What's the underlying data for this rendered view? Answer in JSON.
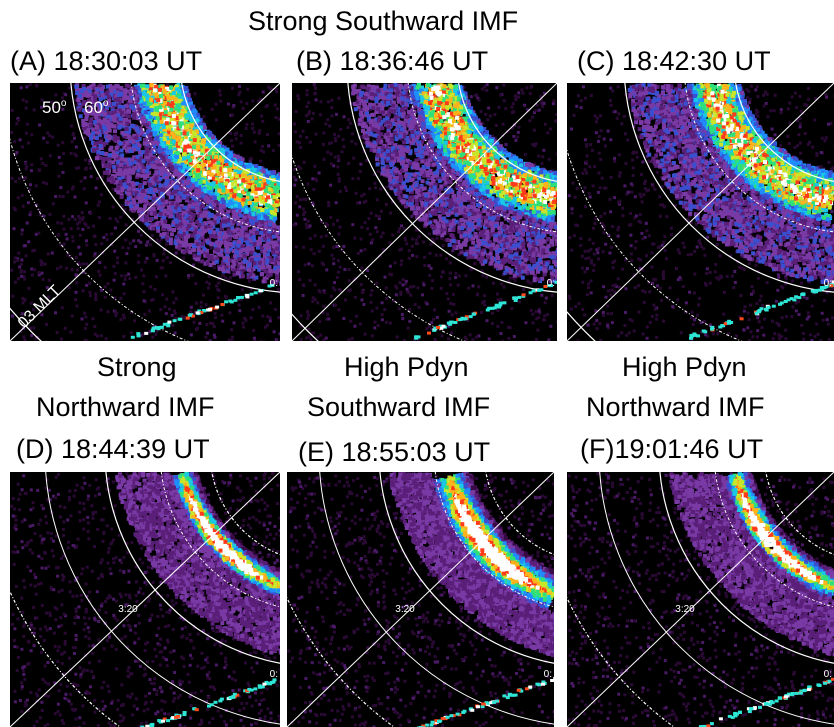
{
  "header": {
    "title": "Strong Southward IMF"
  },
  "groups": {
    "d": [
      "Strong",
      "Northward IMF"
    ],
    "e": [
      "High Pdyn",
      "Southward IMF"
    ],
    "f": [
      "High Pdyn",
      "Northward IMF"
    ]
  },
  "panels": [
    {
      "id": "A",
      "label": "(A) 18:30:03 UT",
      "marks": [
        "50",
        "o",
        "60",
        "o",
        "03 MLT",
        "0:"
      ],
      "type": "oval"
    },
    {
      "id": "B",
      "label": "(B) 18:36:46 UT",
      "marks": [
        "0:"
      ],
      "type": "oval"
    },
    {
      "id": "C",
      "label": "(C) 18:42:30 UT",
      "marks": [
        "0:"
      ],
      "type": "oval"
    },
    {
      "id": "D",
      "label": "(D) 18:44:39 UT",
      "marks": [
        "3:20",
        "0:"
      ],
      "type": "arc"
    },
    {
      "id": "E",
      "label": "(E) 18:55:03 UT",
      "marks": [
        "3:20",
        "0:"
      ],
      "type": "arc"
    },
    {
      "id": "F",
      "label": "(F)19:01:46 UT",
      "marks": [
        "3:20",
        "0:"
      ],
      "type": "arc"
    }
  ]
}
